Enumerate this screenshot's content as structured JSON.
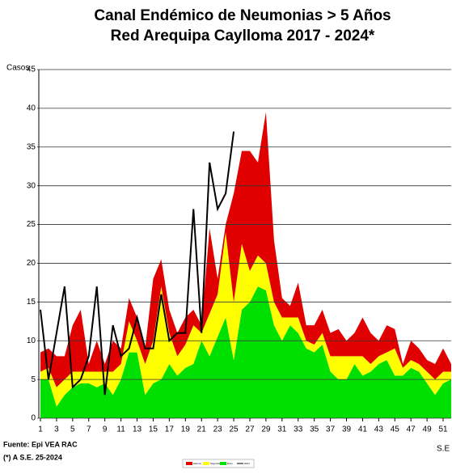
{
  "chart_data": {
    "type": "area",
    "title": "Canal Endémico de Neumonias > 5 Años",
    "subtitle": "Red Arequipa Caylloma 2017 - 2024*",
    "y_label": "Casos",
    "x_label": "S.E",
    "source": "Fuente: Epi VEA RAC",
    "note": "(*) A S.E. 25-2024",
    "x": [
      1,
      2,
      3,
      4,
      5,
      6,
      7,
      8,
      9,
      10,
      11,
      12,
      13,
      14,
      15,
      16,
      17,
      18,
      19,
      20,
      21,
      22,
      23,
      24,
      25,
      26,
      27,
      28,
      29,
      30,
      31,
      32,
      33,
      34,
      35,
      36,
      37,
      38,
      39,
      40,
      41,
      42,
      43,
      44,
      45,
      46,
      47,
      48,
      49,
      50,
      51,
      52
    ],
    "xlim": [
      1,
      52
    ],
    "xticks": [
      1,
      3,
      5,
      7,
      9,
      11,
      13,
      15,
      17,
      19,
      21,
      23,
      25,
      27,
      29,
      31,
      33,
      35,
      37,
      39,
      41,
      43,
      45,
      47,
      49,
      51
    ],
    "ylim": [
      0,
      45
    ],
    "yticks": [
      0,
      5,
      10,
      15,
      20,
      25,
      30,
      35,
      40,
      45
    ],
    "grid": true,
    "legend": "bottom",
    "series": [
      {
        "name": "Éxito",
        "type": "area",
        "color": "#00e000",
        "values": [
          5,
          5,
          1.5,
          3,
          4,
          4.5,
          4.5,
          4,
          4.5,
          3,
          5,
          8.5,
          8.5,
          3,
          4.5,
          5,
          7,
          5.5,
          6.5,
          7,
          10,
          8,
          10.5,
          13,
          7.5,
          14,
          15,
          17,
          16.5,
          12,
          10,
          12,
          11,
          9,
          8.5,
          9.5,
          6,
          5,
          5,
          7,
          5.5,
          6,
          7,
          7.5,
          5.5,
          5.5,
          6.5,
          6,
          4.5,
          3,
          4.5,
          5
        ]
      },
      {
        "name": "Seguridad",
        "type": "area",
        "color": "#ffff00",
        "values": [
          1,
          1.5,
          2.5,
          2,
          2,
          1.5,
          1.5,
          2,
          1.5,
          3,
          2,
          4,
          1.5,
          4,
          5.5,
          12,
          4,
          2.5,
          3,
          5,
          1,
          5.5,
          5.5,
          11,
          7.5,
          8.5,
          4,
          4,
          3.5,
          3,
          3,
          1,
          2,
          1,
          1,
          1.5,
          2,
          3,
          3,
          1,
          2.5,
          1,
          1,
          1,
          3.5,
          1,
          1,
          1,
          1.5,
          2,
          1.5,
          1
        ]
      },
      {
        "name": "Alarma",
        "type": "area",
        "color": "#e00000",
        "values": [
          2.5,
          2.5,
          4,
          3,
          6,
          8,
          1,
          4,
          1,
          4,
          2,
          3,
          3,
          2,
          8,
          3.5,
          3,
          3,
          3.5,
          2,
          1,
          11,
          2,
          1,
          14,
          12,
          15.5,
          12,
          19.5,
          8,
          2.5,
          1.5,
          4.5,
          2,
          2.5,
          3,
          3,
          3.5,
          2,
          3,
          5,
          4,
          2,
          3.5,
          2.5,
          0.5,
          2.5,
          2,
          1.5,
          2,
          3,
          1
        ]
      },
      {
        "name": "2024",
        "type": "line",
        "color": "#000000",
        "values": [
          14,
          5,
          11,
          17,
          4,
          5,
          8,
          17,
          3,
          12,
          8,
          9,
          13,
          9,
          9,
          16,
          10,
          11,
          11,
          27,
          11,
          33,
          27,
          29,
          37,
          null,
          null,
          null,
          null,
          null,
          null,
          null,
          null,
          null,
          null,
          null,
          null,
          null,
          null,
          null,
          null,
          null,
          null,
          null,
          null,
          null,
          null,
          null,
          null,
          null,
          null,
          null
        ]
      }
    ]
  }
}
